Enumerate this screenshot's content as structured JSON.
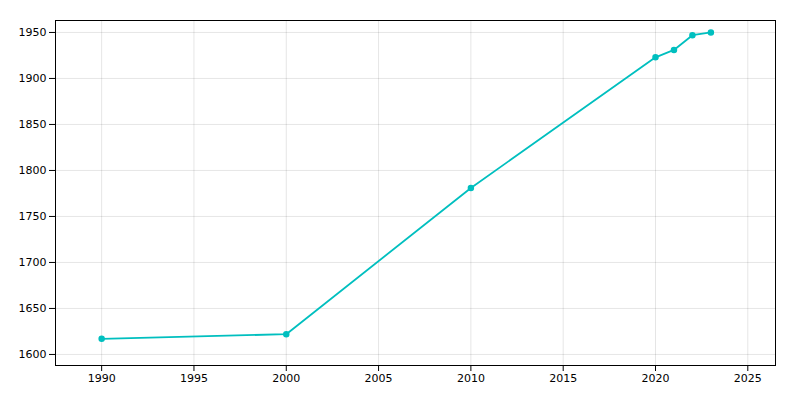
{
  "chart_data": {
    "type": "line",
    "x": [
      1990,
      2000,
      2010,
      2020,
      2021,
      2022,
      2023
    ],
    "values": [
      1617,
      1622,
      1781,
      1923,
      1931,
      1947,
      1950
    ],
    "color": "#00BFBF",
    "marker": "circle",
    "xlim": [
      1987.5,
      2026.5
    ],
    "ylim": [
      1588,
      1963
    ],
    "xticks": [
      1990,
      1995,
      2000,
      2005,
      2010,
      2015,
      2020,
      2025
    ],
    "yticks": [
      1600,
      1650,
      1700,
      1750,
      1800,
      1850,
      1900,
      1950
    ],
    "grid": true
  }
}
